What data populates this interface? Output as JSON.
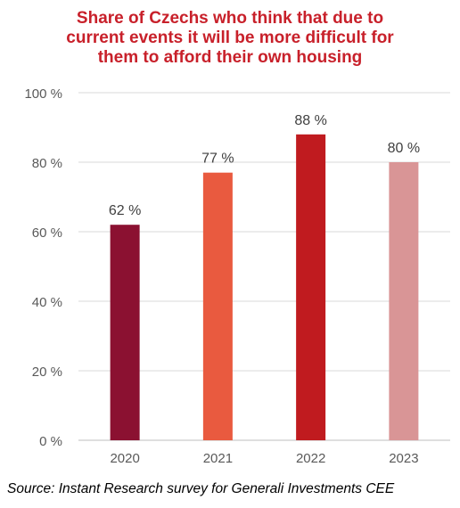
{
  "title_lines": [
    "Share of Czechs who think that due to",
    "current events it will be more difficult for",
    "them to afford their own housing"
  ],
  "source": "Source: Instant Research survey for Generali Investments CEE",
  "chart_data": {
    "type": "bar",
    "title": "Share of Czechs who think that due to current events it will be more difficult for them to afford their own housing",
    "categories": [
      "2020",
      "2021",
      "2022",
      "2023"
    ],
    "values": [
      62,
      77,
      88,
      80
    ],
    "data_labels": [
      "62 %",
      "77 %",
      "88 %",
      "80 %"
    ],
    "bar_colors": [
      "#8b1131",
      "#e95a3f",
      "#c01b1f",
      "#d99596"
    ],
    "ylim": [
      0,
      100
    ],
    "yticks": [
      0,
      20,
      40,
      60,
      80,
      100
    ],
    "ytick_labels": [
      "0 %",
      "20 %",
      "40 %",
      "60 %",
      "80 %",
      "100 %"
    ],
    "grid": true,
    "legend": "none",
    "xlabel": "",
    "ylabel": ""
  }
}
